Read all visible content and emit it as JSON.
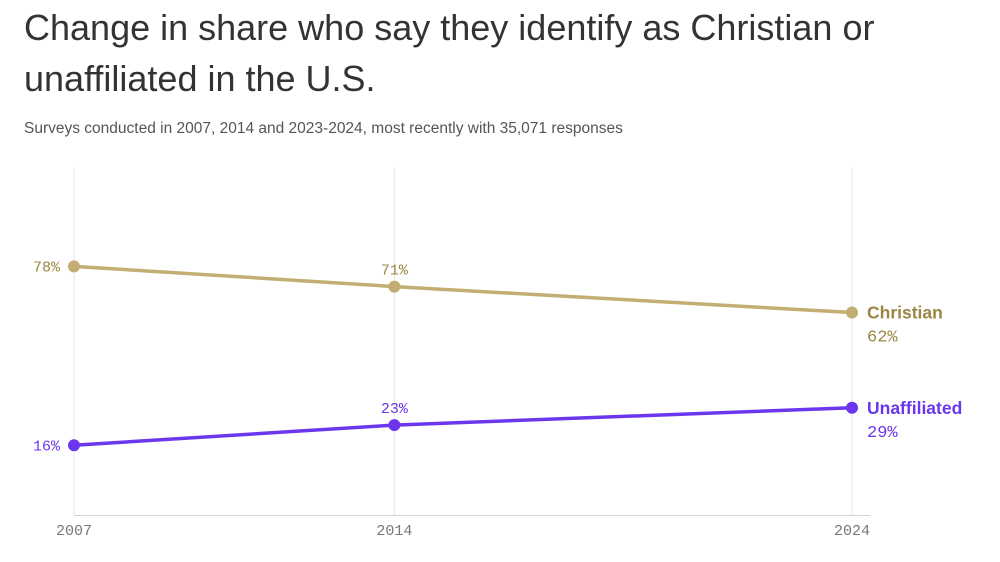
{
  "title": "Change in share who say they identify as Christian or unaffiliated in the U.S.",
  "subtitle": "Surveys conducted in 2007, 2014 and 2023-2024, most recently with 35,071 responses",
  "chart_data": {
    "type": "line",
    "x": [
      2007,
      2014,
      2024
    ],
    "x_tick_labels": [
      "2007",
      "2014",
      "2024"
    ],
    "ylim": [
      5,
      92
    ],
    "grid": "vertical",
    "series": [
      {
        "name": "Christian",
        "values": [
          78,
          71,
          62
        ],
        "point_labels": [
          "78%",
          "71%",
          "62%"
        ],
        "color": "#c2ad72",
        "label_color": "#9a8745"
      },
      {
        "name": "Unaffiliated",
        "values": [
          16,
          23,
          29
        ],
        "point_labels": [
          "16%",
          "23%",
          "29%"
        ],
        "color": "#6b36ee",
        "label_color": "#6b36ee"
      }
    ]
  }
}
